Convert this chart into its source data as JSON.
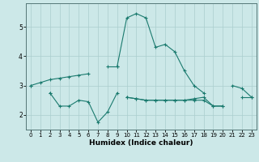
{
  "title": "",
  "xlabel": "Humidex (Indice chaleur)",
  "x_values": [
    0,
    1,
    2,
    3,
    4,
    5,
    6,
    7,
    8,
    9,
    10,
    11,
    12,
    13,
    14,
    15,
    16,
    17,
    18,
    19,
    20,
    21,
    22,
    23
  ],
  "line_main": [
    3.0,
    null,
    null,
    null,
    null,
    null,
    null,
    null,
    null,
    3.65,
    5.3,
    5.45,
    5.3,
    4.3,
    4.4,
    4.15,
    3.5,
    3.0,
    2.75,
    null,
    null,
    3.0,
    2.9,
    2.6
  ],
  "line_upper": [
    3.0,
    3.1,
    3.2,
    3.25,
    3.3,
    3.35,
    3.4,
    null,
    3.65,
    3.65,
    null,
    null,
    null,
    null,
    null,
    null,
    null,
    null,
    null,
    null,
    null,
    null,
    null,
    null
  ],
  "line_lower_dip": [
    null,
    null,
    2.75,
    2.3,
    2.3,
    2.5,
    2.45,
    1.75,
    2.1,
    2.75,
    null,
    null,
    null,
    null,
    null,
    null,
    null,
    null,
    null,
    null,
    null,
    null,
    null,
    null
  ],
  "line_flat1": [
    null,
    null,
    2.75,
    null,
    null,
    null,
    null,
    null,
    null,
    null,
    2.6,
    2.55,
    2.5,
    2.5,
    2.5,
    2.5,
    2.5,
    2.5,
    2.5,
    2.3,
    2.3,
    null,
    null,
    null
  ],
  "line_flat2": [
    null,
    null,
    null,
    null,
    null,
    null,
    null,
    null,
    null,
    null,
    2.6,
    2.55,
    2.5,
    2.5,
    2.5,
    2.5,
    2.5,
    2.55,
    2.6,
    2.3,
    2.3,
    null,
    2.6,
    2.6
  ],
  "bg_color": "#cce8e8",
  "line_color": "#1a7a6e",
  "grid_color": "#aacece",
  "ylim": [
    1.5,
    5.8
  ],
  "xlim": [
    -0.5,
    23.5
  ],
  "yticks": [
    2,
    3,
    4,
    5
  ],
  "xticks": [
    0,
    1,
    2,
    3,
    4,
    5,
    6,
    7,
    8,
    9,
    10,
    11,
    12,
    13,
    14,
    15,
    16,
    17,
    18,
    19,
    20,
    21,
    22,
    23
  ]
}
